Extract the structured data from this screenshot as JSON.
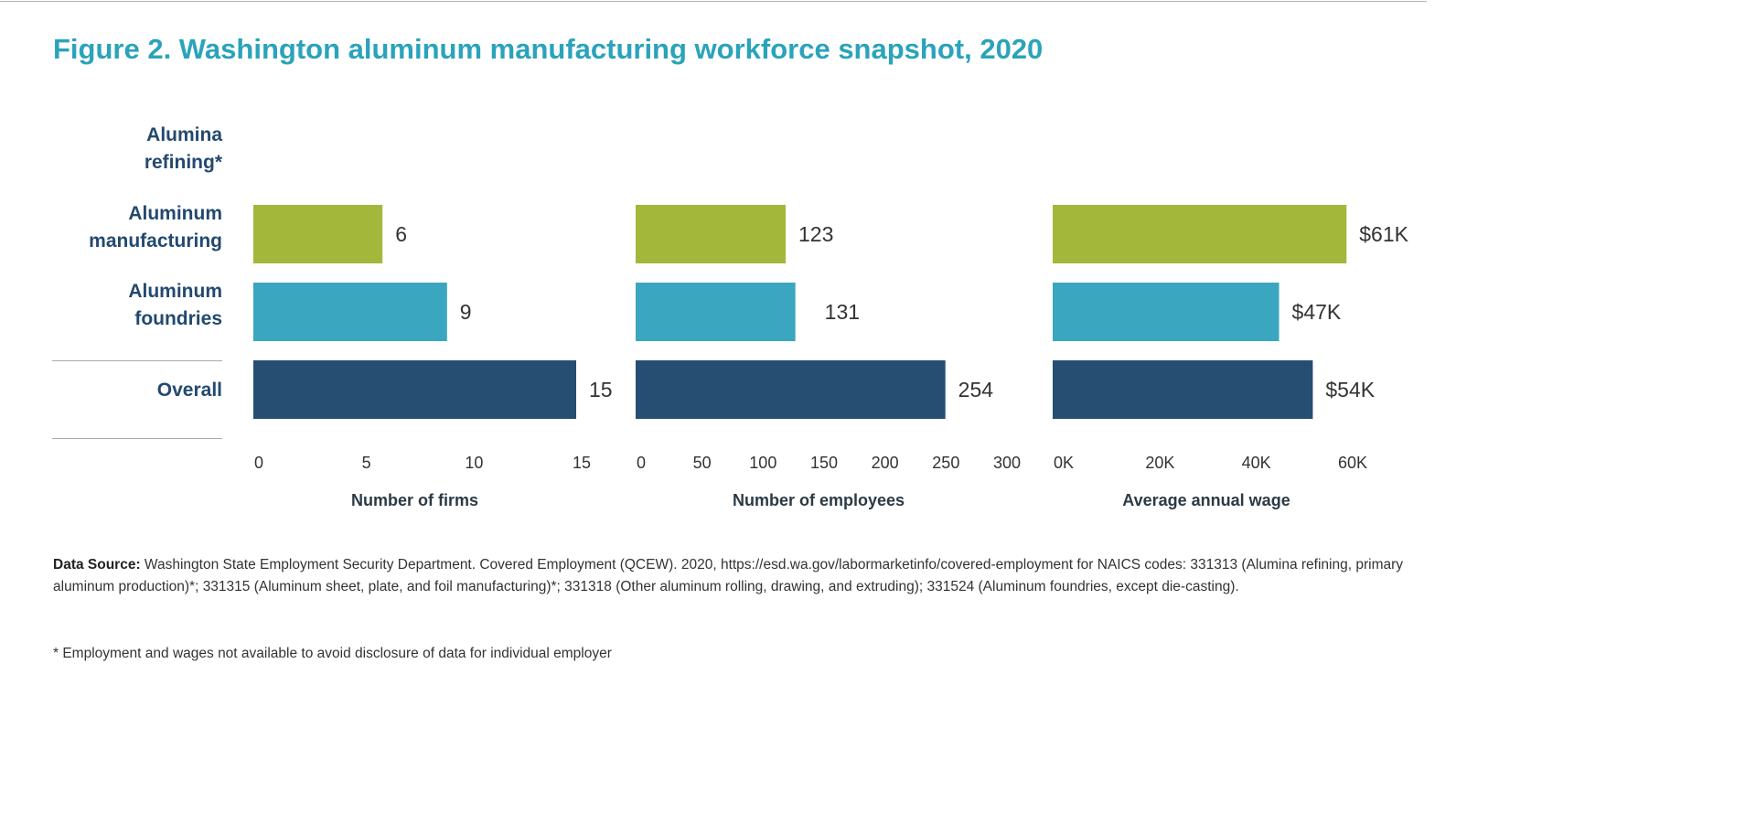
{
  "title": "Figure 2. Washington aluminum manufacturing workforce snapshot, 2020",
  "colors": {
    "title": "#2aa3bb",
    "aluminum_manufacturing": "#a3b83a",
    "aluminum_foundries": "#3aa6bf",
    "overall": "#264d72",
    "category_label": "#23496f"
  },
  "categories": [
    {
      "line1": "Alumina",
      "line2": "refining*"
    },
    {
      "line1": "Aluminum",
      "line2": "manufacturing"
    },
    {
      "line1": "Aluminum",
      "line2": "foundries"
    },
    {
      "line1": "Overall",
      "line2": ""
    }
  ],
  "chart_data": [
    {
      "type": "bar",
      "orientation": "horizontal",
      "xlabel": "Number of firms",
      "categories": [
        "Alumina refining*",
        "Aluminum manufacturing",
        "Aluminum foundries",
        "Overall"
      ],
      "values": [
        null,
        6,
        9,
        15
      ],
      "labels": [
        "",
        "6",
        "9",
        "15"
      ],
      "xlim": [
        0,
        15
      ],
      "ticks": [
        0,
        5,
        10,
        15
      ],
      "tick_labels": [
        "0",
        "5",
        "10",
        "15"
      ]
    },
    {
      "type": "bar",
      "orientation": "horizontal",
      "xlabel": "Number of employees",
      "categories": [
        "Alumina refining*",
        "Aluminum manufacturing",
        "Aluminum foundries",
        "Overall"
      ],
      "values": [
        null,
        123,
        131,
        254
      ],
      "labels": [
        "",
        "123",
        "131",
        "254"
      ],
      "xlim": [
        0,
        300
      ],
      "ticks": [
        0,
        50,
        100,
        150,
        200,
        250,
        300
      ],
      "tick_labels": [
        "0",
        "50",
        "100",
        "150",
        "200",
        "250",
        "300"
      ]
    },
    {
      "type": "bar",
      "orientation": "horizontal",
      "xlabel": "Average annual wage",
      "categories": [
        "Alumina refining*",
        "Aluminum manufacturing",
        "Aluminum foundries",
        "Overall"
      ],
      "values": [
        null,
        61000,
        47000,
        54000
      ],
      "labels": [
        "",
        "$61K",
        "$47K",
        "$54K"
      ],
      "xlim": [
        0,
        60000
      ],
      "ticks": [
        0,
        20000,
        40000,
        60000
      ],
      "tick_labels": [
        "0K",
        "20K",
        "40K",
        "60K"
      ]
    }
  ],
  "source_label": "Data Source:",
  "source_text": " Washington State Employment Security Department. Covered Employment (QCEW). 2020, https://esd.wa.gov/labormarketinfo/covered-employment for NAICS codes: 331313 (Alumina refining, primary aluminum production)*; 331315 (Aluminum sheet, plate, and foil manufacturing)*; 331318 (Other aluminum rolling, drawing, and extruding); 331524 (Aluminum foundries, except die-casting).",
  "footnote": "* Employment and wages not available to avoid disclosure of data for individual employer"
}
